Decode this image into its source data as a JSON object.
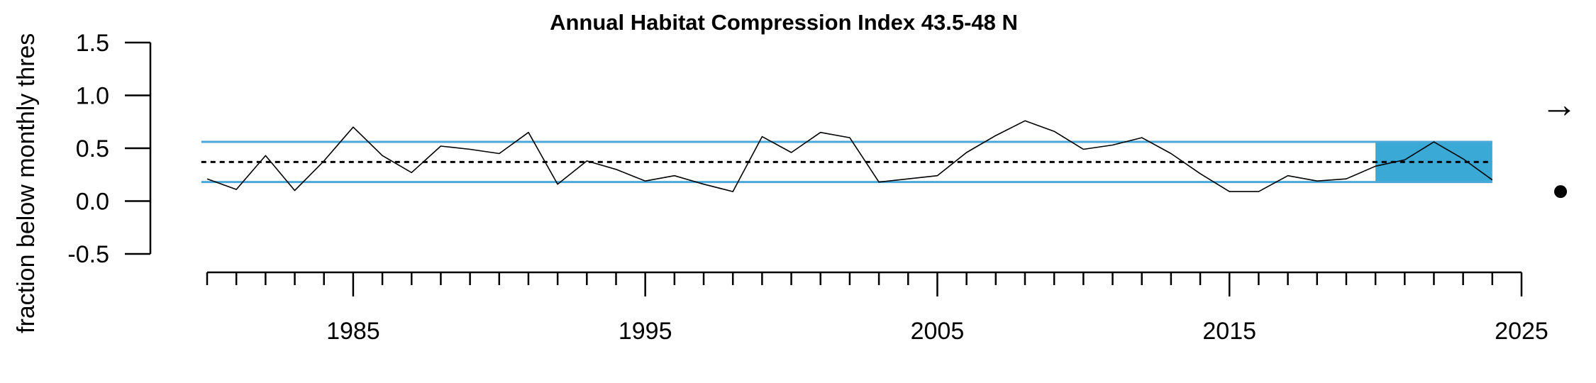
{
  "chart_data": {
    "type": "line",
    "title": "Annual Habitat Compression Index 43.5-48 N",
    "xlabel": "",
    "ylabel": "fraction below monthly thres",
    "xlim": [
      1980,
      2025
    ],
    "ylim": [
      -0.5,
      1.5
    ],
    "x_ticks": [
      1985,
      1995,
      2005,
      2015,
      2025
    ],
    "y_ticks": [
      1.5,
      1.0,
      0.5,
      0.0,
      -0.5
    ],
    "y_tick_labels": [
      "1.5",
      "1.0",
      "0.5",
      "0.0",
      "-0.5"
    ],
    "mean": 0.37,
    "upper_sd": 0.56,
    "lower_sd": 0.18,
    "recent_window": [
      2020,
      2024
    ],
    "trend_symbol": "→",
    "mean_symbol": "●",
    "colors": {
      "series": "#000000",
      "sd_lines": "#4aa8d8",
      "shade": "#3aa9d6",
      "mean_line": "#000000"
    },
    "series": [
      {
        "x": [
          1980,
          1981,
          1982,
          1983,
          1984,
          1985,
          1986,
          1987,
          1988,
          1989,
          1990,
          1991,
          1992,
          1993,
          1994,
          1995,
          1996,
          1997,
          1998,
          1999,
          2000,
          2001,
          2002,
          2003,
          2004,
          2005,
          2006,
          2007,
          2008,
          2009,
          2010,
          2011,
          2012,
          2013,
          2014,
          2015,
          2016,
          2017,
          2018,
          2019,
          2020,
          2021,
          2022,
          2023,
          2024
        ],
        "values": [
          0.21,
          0.11,
          0.43,
          0.1,
          0.38,
          0.7,
          0.43,
          0.27,
          0.52,
          0.49,
          0.45,
          0.65,
          0.16,
          0.38,
          0.3,
          0.19,
          0.24,
          0.16,
          0.09,
          0.61,
          0.46,
          0.65,
          0.6,
          0.18,
          0.21,
          0.24,
          0.46,
          0.62,
          0.76,
          0.66,
          0.49,
          0.53,
          0.6,
          0.45,
          0.26,
          0.09,
          0.09,
          0.24,
          0.19,
          0.21,
          0.33,
          0.39,
          0.56,
          0.4,
          0.2
        ]
      }
    ]
  }
}
